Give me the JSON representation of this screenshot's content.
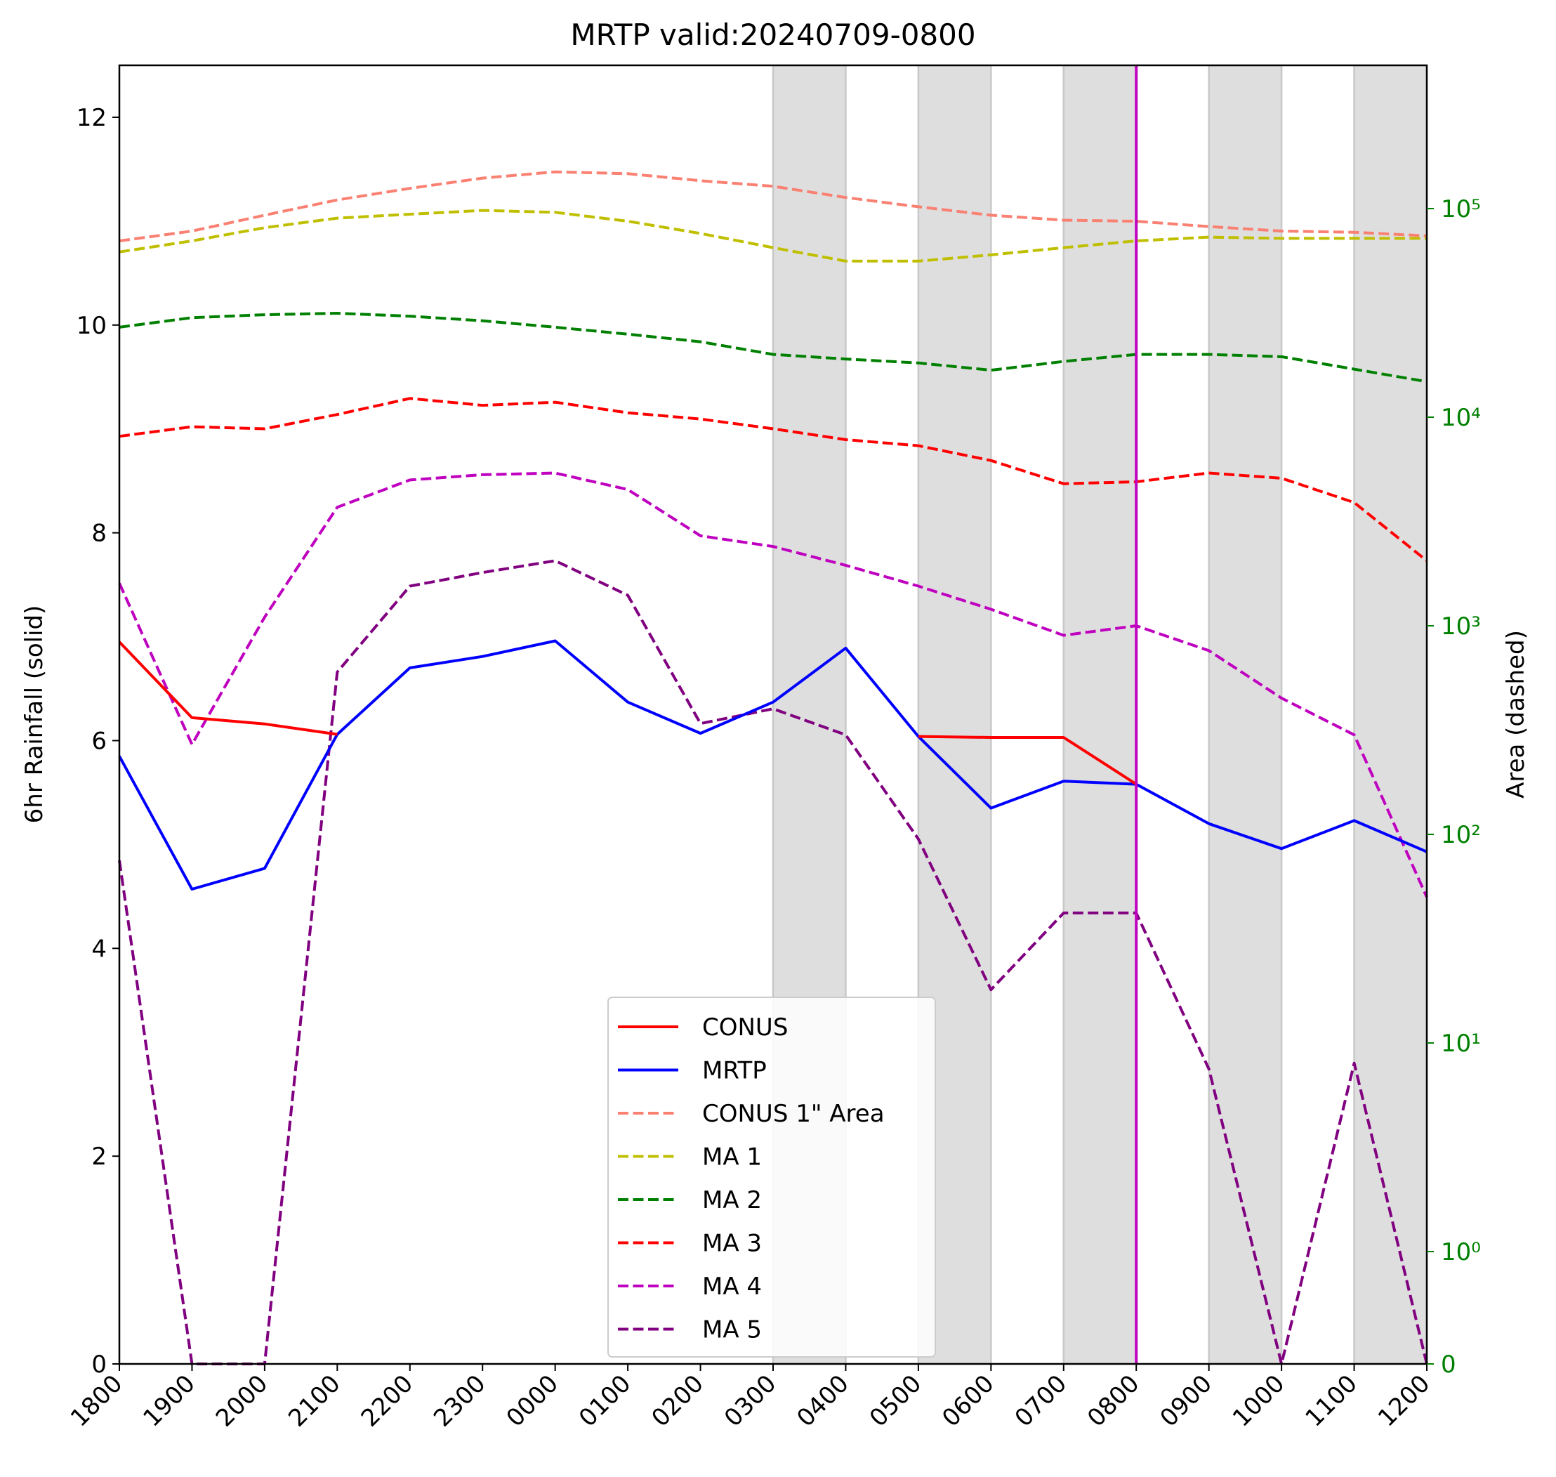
{
  "chart_data": {
    "type": "line",
    "title": "MRTP valid:20240709-0800",
    "ylabel": "6hr Rainfall (solid)",
    "ylabel_right": "Area (dashed)",
    "ylim": [
      0,
      12.5
    ],
    "yticks": [
      0,
      2,
      4,
      6,
      8,
      10,
      12
    ],
    "right_axis_scale": "symlog",
    "right_ticks": [
      {
        "value": 0,
        "label": "0"
      },
      {
        "value": 1,
        "label": "10⁰"
      },
      {
        "value": 10,
        "label": "10¹"
      },
      {
        "value": 100,
        "label": "10²"
      },
      {
        "value": 1000,
        "label": "10³"
      },
      {
        "value": 10000,
        "label": "10⁴"
      },
      {
        "value": 100000,
        "label": "10⁵"
      }
    ],
    "x": [
      "1800",
      "1900",
      "2000",
      "2100",
      "2200",
      "2300",
      "0000",
      "0100",
      "0200",
      "0300",
      "0400",
      "0500",
      "0600",
      "0700",
      "0800",
      "0900",
      "1000",
      "1100",
      "1200"
    ],
    "shaded_bands": [
      [
        "0300",
        "0400"
      ],
      [
        "0500",
        "0600"
      ],
      [
        "0700",
        "0800"
      ],
      [
        "0900",
        "1000"
      ],
      [
        "1100",
        "1200"
      ]
    ],
    "valid_time_line": {
      "x": "0800",
      "color": "#bf00bf"
    },
    "grid": false,
    "legend_location": "lower center",
    "series": [
      {
        "name": "CONUS",
        "axis": "left",
        "style": "solid",
        "color": "#ff0000",
        "values": [
          6.95,
          6.22,
          6.16,
          6.06,
          null,
          null,
          null,
          null,
          null,
          null,
          null,
          6.04,
          6.03,
          6.03,
          5.58,
          null,
          null,
          null,
          null
        ]
      },
      {
        "name": "MRTP",
        "axis": "left",
        "style": "solid",
        "color": "#0000ff",
        "values": [
          5.85,
          4.57,
          4.77,
          6.06,
          6.7,
          6.81,
          6.96,
          6.37,
          6.07,
          6.37,
          6.89,
          6.04,
          5.35,
          5.61,
          5.58,
          5.2,
          4.96,
          5.23,
          4.93
        ]
      },
      {
        "name": "CONUS 1\" Area",
        "axis": "right",
        "style": "dashed",
        "color": "#fa8072",
        "values": [
          70000,
          78000,
          93000,
          110000,
          125000,
          140000,
          150000,
          147000,
          136000,
          128000,
          113000,
          102000,
          93000,
          88000,
          87000,
          82000,
          78000,
          77000,
          74000
        ]
      },
      {
        "name": "MA 1",
        "axis": "right",
        "style": "dashed",
        "color": "#bfbf00",
        "values": [
          62000,
          70000,
          81000,
          90000,
          94000,
          98000,
          96000,
          87000,
          76000,
          65000,
          56000,
          56000,
          60000,
          65000,
          70000,
          73000,
          72000,
          72000,
          72000
        ]
      },
      {
        "name": "MA 2",
        "axis": "right",
        "style": "dashed",
        "color": "#008000",
        "values": [
          27000,
          30000,
          31000,
          31500,
          30500,
          29000,
          27000,
          25000,
          23000,
          20000,
          19000,
          18200,
          16800,
          18500,
          20000,
          20000,
          19500,
          17000,
          14800
        ]
      },
      {
        "name": "MA 3",
        "axis": "right",
        "style": "dashed",
        "color": "#ff0000",
        "values": [
          8100,
          9000,
          8800,
          10300,
          12300,
          11400,
          11800,
          10500,
          9800,
          8800,
          7800,
          7300,
          6200,
          4800,
          4900,
          5400,
          5100,
          3900,
          2050
        ]
      },
      {
        "name": "MA 4",
        "axis": "right",
        "style": "dashed",
        "color": "#bf00bf",
        "values": [
          1600,
          270,
          1100,
          3700,
          5000,
          5300,
          5400,
          4500,
          2700,
          2400,
          1950,
          1550,
          1200,
          900,
          1000,
          760,
          450,
          300,
          50
        ]
      },
      {
        "name": "MA 5",
        "axis": "right",
        "style": "dashed",
        "color": "#800080",
        "values": [
          75,
          0,
          0,
          600,
          1550,
          1800,
          2050,
          1400,
          340,
          400,
          300,
          95,
          18,
          42,
          42,
          7.5,
          0,
          8,
          0
        ]
      }
    ]
  }
}
